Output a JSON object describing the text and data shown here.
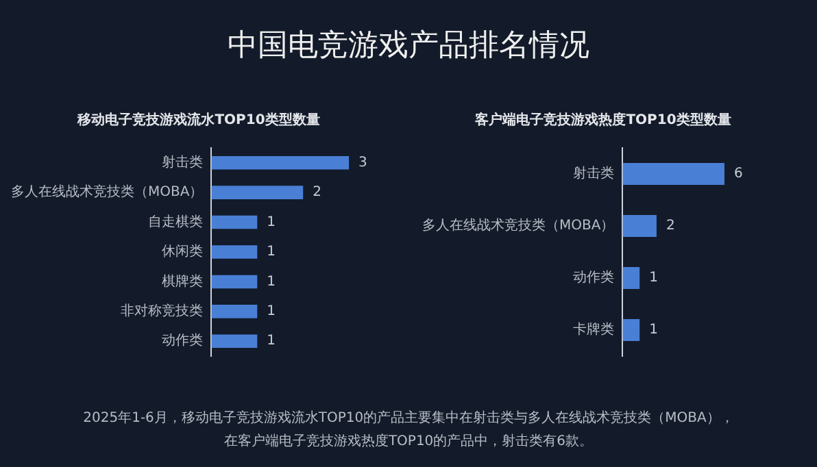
{
  "chart_data": [
    {
      "type": "bar",
      "orientation": "horizontal",
      "title": "中国电竞游戏产品排名情况",
      "subtitle": "移动电子竞技游戏流水TOP10类型数量",
      "categories": [
        "射击类",
        "多人在线战术竞技类（MOBA）",
        "自走棋类",
        "休闲类",
        "棋牌类",
        "非对称竞技类",
        "动作类"
      ],
      "values": [
        3,
        2,
        1,
        1,
        1,
        1,
        1
      ],
      "color": "#4a7fd6",
      "data_labels": true
    },
    {
      "type": "bar",
      "orientation": "horizontal",
      "subtitle": "客户端电子竞技游戏热度TOP10类型数量",
      "categories": [
        "射击类",
        "多人在线战术竞技类（MOBA）",
        "动作类",
        "卡牌类"
      ],
      "values": [
        6,
        2,
        1,
        1
      ],
      "color": "#4a7fd6",
      "data_labels": true,
      "annotations": [
        "2025年1-6月，移动电子竞技游戏流水TOP10的产品主要集中在射击类与多人在线战术竞技类（MOBA），",
        "在客户端电子竞技游戏热度TOP10的产品中，射击类有6款。"
      ]
    }
  ]
}
